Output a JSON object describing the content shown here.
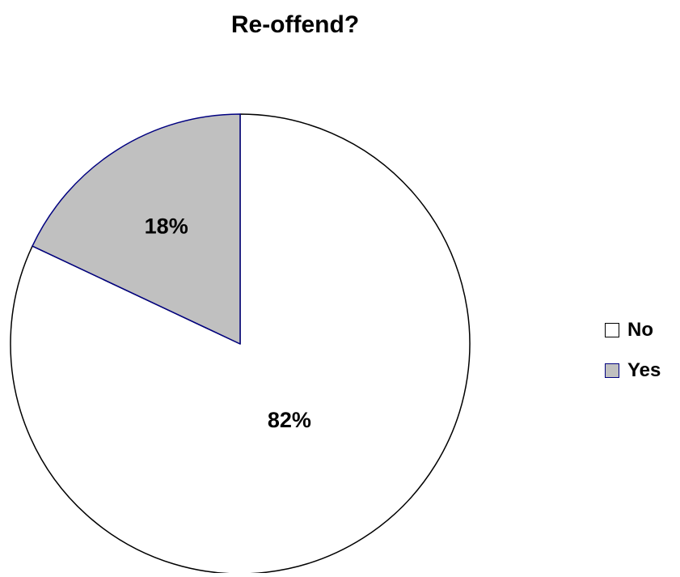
{
  "chart_data": {
    "type": "pie",
    "title": "Re-offend?",
    "categories": [
      "No",
      "Yes"
    ],
    "values": [
      82,
      18
    ],
    "labels": [
      "82%",
      "18%"
    ],
    "colors": [
      "#ffffff",
      "#c0c0c0"
    ],
    "legend": {
      "placement": "right",
      "entries": [
        "No",
        "Yes"
      ],
      "border_colors": [
        "#000000",
        "#000080"
      ]
    }
  }
}
